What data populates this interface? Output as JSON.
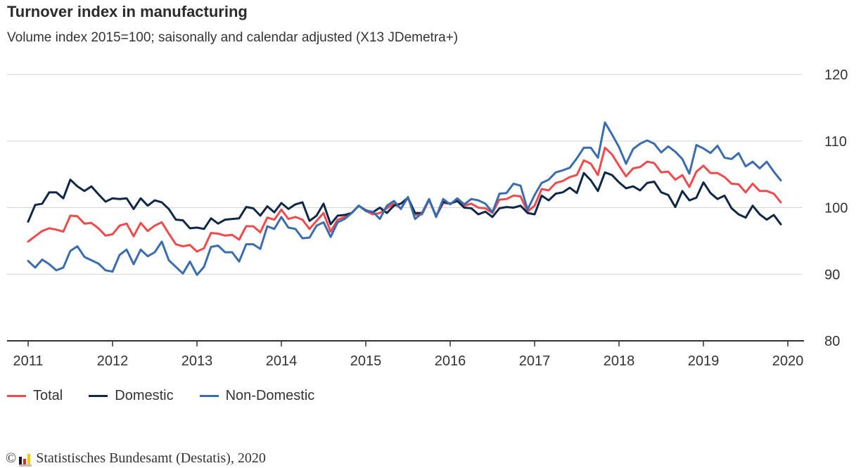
{
  "header": {
    "title": "Turnover index in manufacturing",
    "subtitle": "Volume index 2015=100; saisonally and calendar adjusted (X13 JDemetra+)"
  },
  "legend": [
    {
      "label": "Total",
      "color": "#f04a4c"
    },
    {
      "label": "Domestic",
      "color": "#0f2847"
    },
    {
      "label": "Non-Domestic",
      "color": "#3a6db0"
    }
  ],
  "footer": {
    "copyright_symbol": "©",
    "source": "Statistisches Bundesamt (Destatis), 2020",
    "logo_colors": [
      "#1a1a1a",
      "#e0262b",
      "#f7c600"
    ]
  },
  "chart_data": {
    "type": "line",
    "title": "Turnover index in manufacturing",
    "subtitle": "Volume index 2015=100; saisonally and calendar adjusted (X13 JDemetra+)",
    "xlabel": "",
    "ylabel": "",
    "x_start": "2011-01",
    "x_end": "2019-12",
    "frequency": "monthly",
    "xlim": [
      2011,
      2020
    ],
    "x_ticks": [
      "2011",
      "2012",
      "2013",
      "2014",
      "2015",
      "2016",
      "2017",
      "2018",
      "2019",
      "2020"
    ],
    "ylim": [
      80,
      120
    ],
    "y_ticks": [
      "80",
      "90",
      "100",
      "110",
      "120"
    ],
    "y_axis_side": "right",
    "grid": true,
    "legend_position": "bottom-left",
    "series": [
      {
        "name": "Total",
        "color": "#f04a4c",
        "values": [
          94.9,
          95.7,
          96.5,
          96.9,
          96.7,
          96.4,
          98.8,
          98.7,
          97.6,
          97.7,
          96.9,
          95.8,
          96.0,
          97.3,
          97.6,
          95.7,
          97.7,
          96.5,
          97.3,
          97.8,
          96.1,
          94.5,
          94.2,
          94.4,
          93.4,
          93.9,
          96.2,
          96.1,
          95.8,
          95.9,
          95.2,
          97.2,
          97.2,
          96.3,
          98.5,
          98.2,
          99.7,
          98.3,
          98.6,
          98.2,
          96.8,
          98.0,
          99.2,
          96.4,
          98.2,
          98.6,
          99.2,
          100.3,
          99.5,
          99.0,
          99.2,
          99.9,
          100.6,
          99.9,
          101.5,
          98.9,
          99.0,
          101.2,
          98.7,
          100.7,
          100.6,
          101.0,
          100.3,
          100.6,
          100.0,
          99.9,
          99.2,
          101.2,
          101.3,
          101.8,
          101.7,
          99.4,
          100.3,
          102.8,
          102.6,
          103.7,
          104.0,
          104.6,
          104.9,
          107.1,
          106.6,
          104.9,
          109.0,
          108.0,
          106.3,
          104.7,
          105.9,
          106.1,
          106.9,
          106.7,
          105.3,
          105.4,
          104.2,
          104.9,
          103.1,
          105.4,
          106.3,
          105.2,
          105.2,
          104.6,
          103.6,
          103.5,
          102.3,
          103.6,
          102.5,
          102.5,
          102.1,
          100.8
        ]
      },
      {
        "name": "Domestic",
        "color": "#0f2847",
        "values": [
          97.9,
          100.4,
          100.6,
          102.3,
          102.3,
          101.4,
          104.2,
          103.2,
          102.5,
          103.2,
          102.0,
          100.9,
          101.4,
          101.3,
          101.4,
          99.8,
          101.4,
          100.3,
          101.1,
          100.8,
          99.8,
          98.2,
          98.1,
          96.9,
          97.0,
          96.8,
          98.4,
          97.6,
          98.2,
          98.3,
          98.4,
          100.1,
          99.9,
          98.8,
          100.2,
          99.3,
          100.7,
          99.8,
          100.5,
          100.8,
          98.0,
          98.8,
          100.6,
          97.5,
          98.8,
          98.9,
          99.2,
          100.3,
          99.6,
          99.3,
          100.0,
          99.2,
          100.3,
          100.6,
          101.5,
          99.2,
          99.2,
          101.2,
          98.7,
          100.9,
          100.6,
          101.0,
          100.0,
          99.9,
          99.0,
          99.4,
          98.6,
          99.9,
          100.1,
          100.0,
          100.3,
          99.2,
          99.0,
          101.8,
          101.1,
          102.1,
          102.3,
          103.0,
          102.2,
          105.2,
          104.1,
          102.5,
          105.3,
          104.9,
          103.8,
          102.9,
          103.2,
          102.6,
          103.7,
          103.9,
          102.3,
          101.9,
          100.1,
          102.5,
          101.1,
          101.5,
          103.8,
          102.2,
          101.3,
          101.8,
          99.9,
          99.0,
          98.5,
          100.3,
          99.0,
          98.2,
          98.9,
          97.5
        ]
      },
      {
        "name": "Non-Domestic",
        "color": "#3a6db0",
        "values": [
          92.0,
          91.0,
          92.2,
          91.5,
          90.6,
          91.0,
          93.5,
          94.2,
          92.6,
          92.1,
          91.6,
          90.6,
          90.4,
          92.9,
          93.7,
          91.5,
          93.7,
          92.7,
          93.3,
          94.9,
          92.1,
          91.1,
          90.1,
          91.9,
          89.9,
          91.1,
          94.1,
          94.3,
          93.3,
          93.3,
          91.9,
          94.5,
          94.5,
          93.8,
          97.2,
          96.8,
          98.6,
          97.0,
          96.8,
          95.4,
          95.5,
          97.3,
          97.8,
          95.6,
          97.8,
          98.3,
          99.2,
          100.3,
          99.5,
          99.4,
          98.3,
          100.3,
          101.0,
          99.8,
          101.6,
          98.3,
          99.2,
          101.3,
          98.6,
          101.3,
          100.5,
          101.4,
          100.5,
          101.3,
          101.1,
          100.6,
          99.3,
          102.1,
          102.2,
          103.6,
          103.3,
          99.7,
          101.9,
          103.7,
          104.2,
          105.3,
          105.6,
          106.0,
          107.4,
          109.0,
          109.0,
          107.5,
          112.8,
          111.0,
          109.1,
          106.6,
          108.8,
          109.6,
          110.1,
          109.6,
          108.3,
          109.2,
          108.4,
          107.3,
          105.1,
          109.4,
          108.9,
          108.2,
          109.3,
          107.5,
          107.3,
          108.2,
          106.2,
          106.9,
          105.9,
          106.9,
          105.4,
          104.1
        ]
      }
    ]
  }
}
